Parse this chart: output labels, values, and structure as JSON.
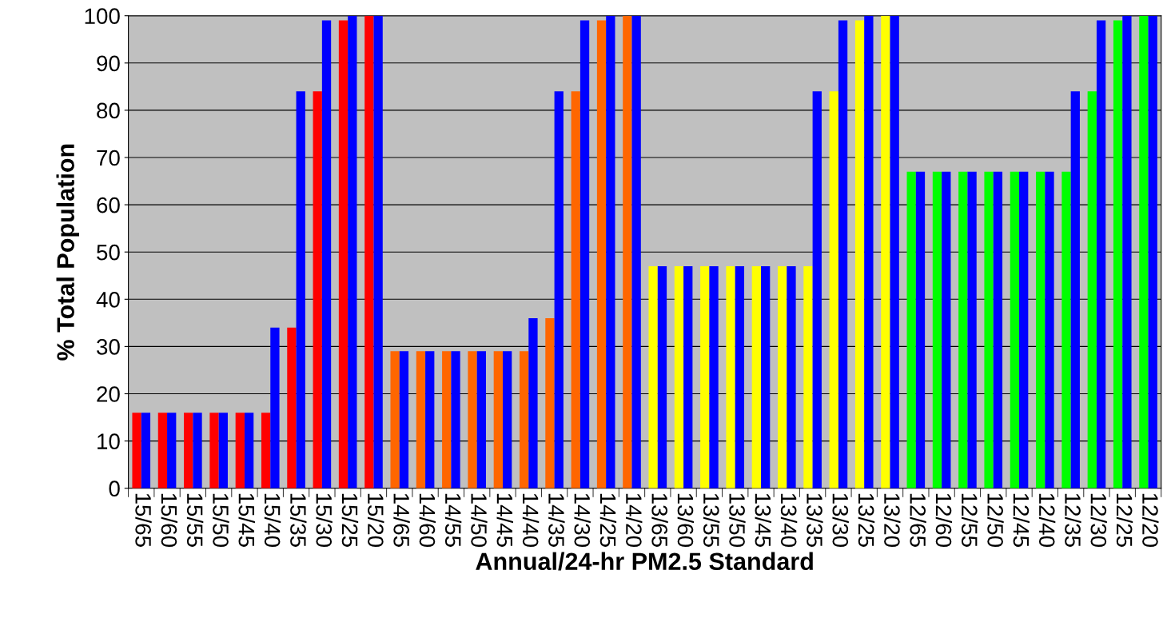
{
  "chart_data": {
    "type": "bar",
    "xlabel": "Annual/24-hr PM2.5 Standard",
    "ylabel": "% Total Population",
    "categories": [
      "15/65",
      "15/60",
      "15/55",
      "15/50",
      "15/45",
      "15/40",
      "15/35",
      "15/30",
      "15/25",
      "15/20",
      "14/65",
      "14/60",
      "14/55",
      "14/50",
      "14/45",
      "14/40",
      "14/35",
      "14/30",
      "14/25",
      "14/20",
      "13/65",
      "13/60",
      "13/55",
      "13/50",
      "13/45",
      "13/40",
      "13/35",
      "13/30",
      "13/25",
      "13/20",
      "12/65",
      "12/60",
      "12/55",
      "12/50",
      "12/45",
      "12/40",
      "12/35",
      "12/30",
      "12/25",
      "12/20"
    ],
    "series": [
      {
        "colors": [
          "#ff0000",
          "#ff0000",
          "#ff0000",
          "#ff0000",
          "#ff0000",
          "#ff0000",
          "#ff0000",
          "#ff0000",
          "#ff0000",
          "#ff0000",
          "#ff6600",
          "#ff6600",
          "#ff6600",
          "#ff6600",
          "#ff6600",
          "#ff6600",
          "#ff6600",
          "#ff6600",
          "#ff6600",
          "#ff6600",
          "#ffff00",
          "#ffff00",
          "#ffff00",
          "#ffff00",
          "#ffff00",
          "#ffff00",
          "#ffff00",
          "#ffff00",
          "#ffff00",
          "#ffff00",
          "#00ff00",
          "#00ff00",
          "#00ff00",
          "#00ff00",
          "#00ff00",
          "#00ff00",
          "#00ff00",
          "#00ff00",
          "#00ff00",
          "#00ff00"
        ],
        "values": [
          16,
          16,
          16,
          16,
          16,
          16,
          34,
          84,
          99,
          100,
          29,
          29,
          29,
          29,
          29,
          29,
          36,
          84,
          99,
          100,
          47,
          47,
          47,
          47,
          47,
          47,
          47,
          84,
          99,
          100,
          67,
          67,
          67,
          67,
          67,
          67,
          67,
          84,
          99,
          100
        ]
      },
      {
        "color": "#0000ff",
        "values": [
          16,
          16,
          16,
          16,
          16,
          34,
          84,
          99,
          100,
          100,
          29,
          29,
          29,
          29,
          29,
          36,
          84,
          99,
          100,
          100,
          47,
          47,
          47,
          47,
          47,
          47,
          84,
          99,
          100,
          100,
          67,
          67,
          67,
          67,
          67,
          67,
          84,
          99,
          100,
          100
        ]
      }
    ],
    "ylim": [
      0,
      100
    ],
    "yticks": [
      0,
      10,
      20,
      30,
      40,
      50,
      60,
      70,
      80,
      90,
      100
    ],
    "grid": "y",
    "legend": false
  }
}
